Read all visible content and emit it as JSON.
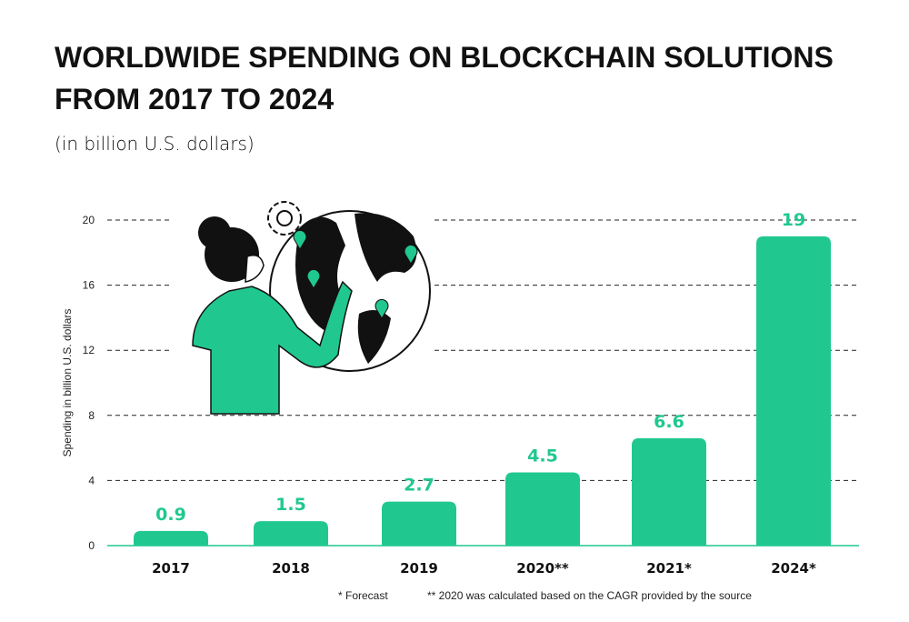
{
  "chart_data": {
    "type": "bar",
    "title_line1": "WORLDWIDE SPENDING ON BLOCKCHAIN SOLUTIONS",
    "title_line2": "FROM 2017 TO 2024",
    "subtitle": "(in billion U.S. dollars)",
    "ylabel": "Spending in billion U.S. dollars",
    "xlabel": "",
    "categories": [
      "2017",
      "2018",
      "2019",
      "2020**",
      "2021*",
      "2024*"
    ],
    "values": [
      0.9,
      1.5,
      2.7,
      4.5,
      6.6,
      19
    ],
    "value_labels": [
      "0.9",
      "1.5",
      "2.7",
      "4.5",
      "6.6",
      "19"
    ],
    "ylim": [
      0,
      20
    ],
    "yticks": [
      0,
      4,
      8,
      12,
      16,
      20
    ],
    "grid": "dashed horizontal",
    "bar_color": "#20c88f",
    "notes": [
      "* Forecast",
      "** 2020 was calculated based on the CAGR provided by the source"
    ]
  }
}
